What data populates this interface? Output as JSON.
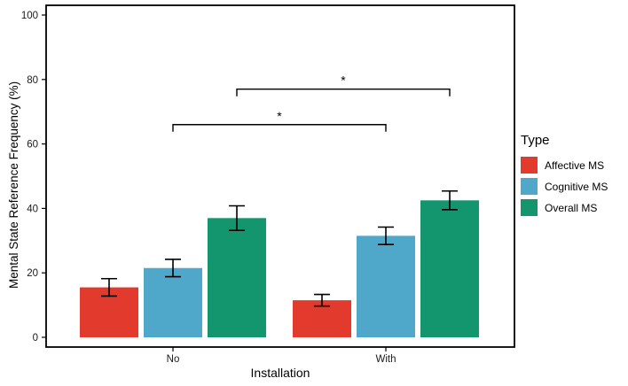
{
  "chart_data": {
    "type": "bar",
    "title": "",
    "xlabel": "Installation",
    "ylabel": "Mental State Reference Frequency (%)",
    "categories": [
      "No",
      "With"
    ],
    "series": [
      {
        "name": "Affective MS",
        "color": "#e23a2c",
        "values": [
          15.5,
          11.5
        ],
        "errors": [
          2.7,
          1.8
        ]
      },
      {
        "name": "Cognitive MS",
        "color": "#4fa8c9",
        "values": [
          21.5,
          31.5
        ],
        "errors": [
          2.7,
          2.7
        ]
      },
      {
        "name": "Overall MS",
        "color": "#13966e",
        "values": [
          37.0,
          42.5
        ],
        "errors": [
          3.8,
          2.9
        ]
      }
    ],
    "ylim": [
      0,
      100
    ],
    "yticks": [
      0,
      20,
      40,
      60,
      80,
      100
    ],
    "grid": false,
    "legend_title": "Type",
    "legend_position": "right",
    "annotations": [
      {
        "label": "*",
        "series": "Cognitive MS",
        "from_category": "No",
        "to_category": "With",
        "y": 66
      },
      {
        "label": "*",
        "series": "Overall MS",
        "from_category": "No",
        "to_category": "With",
        "y": 77
      }
    ]
  }
}
